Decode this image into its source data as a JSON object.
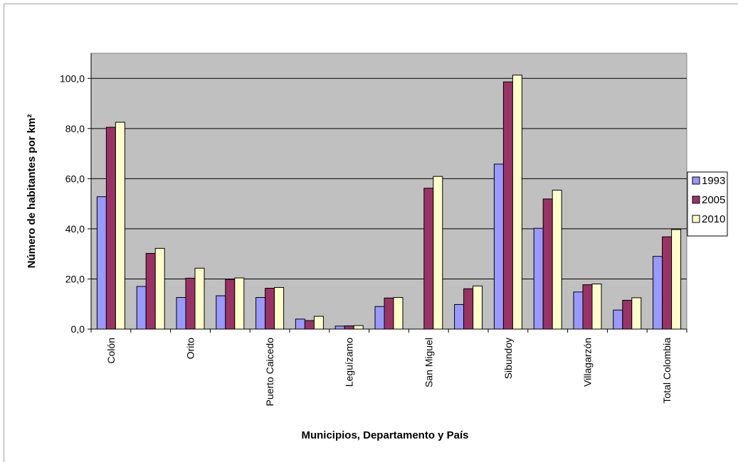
{
  "chart_data": {
    "type": "bar",
    "title": "",
    "xlabel": "Municipios, Departamento y País",
    "ylabel": "Número de habitantes por km²",
    "ylim": [
      0,
      110
    ],
    "yticks": [
      "0,0",
      "20,0",
      "40,0",
      "60,0",
      "80,0",
      "100,0"
    ],
    "ytick_values": [
      0,
      20,
      40,
      60,
      80,
      100
    ],
    "categories": [
      "Colón",
      "",
      "Orito",
      "",
      "Puerto Caicedo",
      "",
      "Leguízamo",
      "",
      "San Miguel",
      "",
      "Sibundoy",
      "",
      "Villagarzón",
      "",
      "Total Colombia"
    ],
    "series": [
      {
        "name": "1993",
        "color": "#9999ff",
        "values": [
          52.8,
          17.0,
          12.6,
          13.3,
          12.6,
          4.0,
          1.2,
          9.0,
          null,
          9.8,
          65.8,
          40.2,
          14.8,
          7.6,
          29.0
        ]
      },
      {
        "name": "2005",
        "color": "#993366",
        "values": [
          80.5,
          30.2,
          20.3,
          19.8,
          16.3,
          3.4,
          1.3,
          12.4,
          56.2,
          16.1,
          98.6,
          51.9,
          17.7,
          11.5,
          36.8
        ]
      },
      {
        "name": "2010",
        "color": "#ffffcc",
        "values": [
          82.5,
          32.2,
          24.3,
          20.4,
          16.6,
          5.1,
          1.4,
          12.6,
          60.9,
          17.2,
          101.3,
          55.4,
          18.0,
          12.5,
          39.7
        ]
      }
    ],
    "grid": true,
    "legend_position": "right",
    "plot_background": "#c0c0c0"
  }
}
